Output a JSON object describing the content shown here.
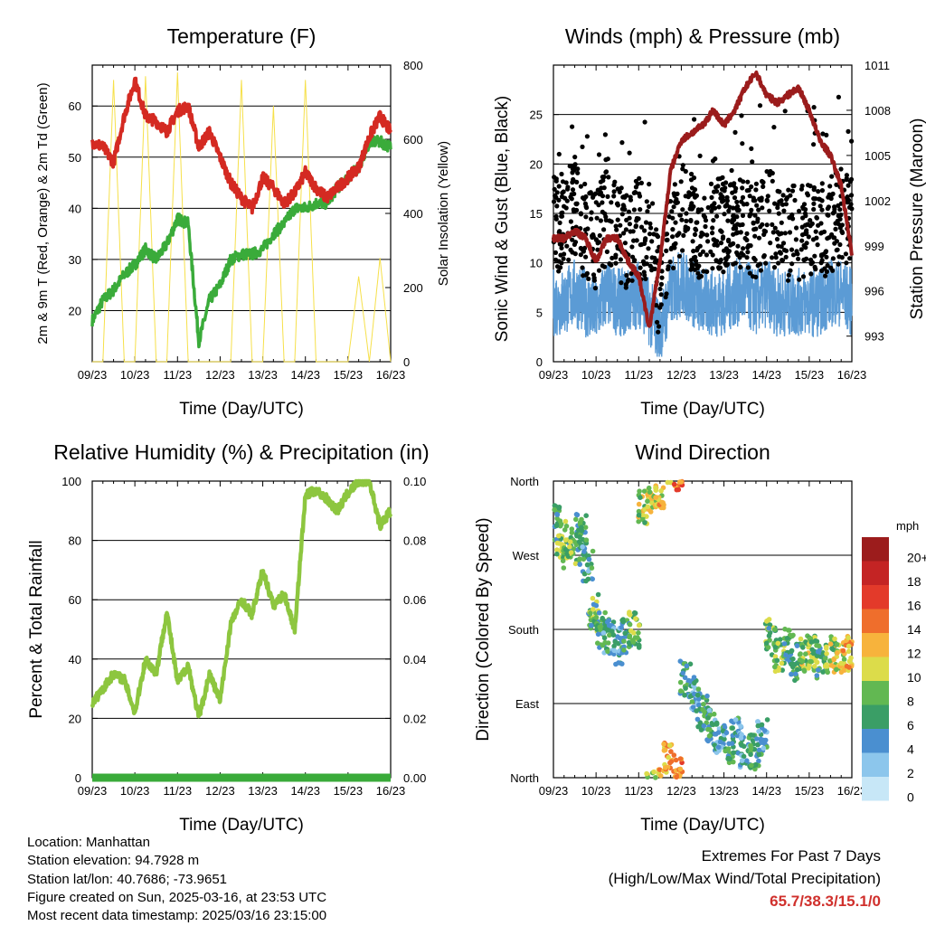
{
  "x_ticks": [
    "09/23",
    "10/23",
    "11/23",
    "12/23",
    "13/23",
    "14/23",
    "15/23",
    "16/23"
  ],
  "xlabel": "Time (Day/UTC)",
  "info": {
    "location": "Location: Manhattan",
    "elevation": "Station elevation: 94.7928 m",
    "latlon": "Station lat/lon: 40.7686; -73.9651",
    "created": "Figure created on Sun, 2025-03-16, at 23:53 UTC",
    "recent": "Most recent data timestamp: 2025/03/16 23:15:00"
  },
  "extremes": {
    "title": "Extremes For Past 7 Days",
    "subtitle": "(High/Low/Max Wind/Total Precipitation)",
    "values": "65.7/38.3/15.1/0",
    "color": "#d0302c"
  },
  "chart_data": [
    {
      "type": "line",
      "title": "Temperature (F)",
      "xlabel": "Time (Day/UTC)",
      "ylabel": "2m & 9m T (Red, Orange) & 2m Td (Green)",
      "y2label": "Solar Insolation (Yellow)",
      "ylim": [
        10,
        68
      ],
      "y2lim": [
        0,
        800
      ],
      "yticks": [
        20,
        30,
        40,
        50,
        60
      ],
      "y2ticks": [
        0,
        200,
        400,
        600,
        800
      ],
      "grid": true,
      "x": [
        9.0,
        9.25,
        9.5,
        9.75,
        10.0,
        10.25,
        10.5,
        10.75,
        11.0,
        11.25,
        11.5,
        11.75,
        12.0,
        12.25,
        12.5,
        12.75,
        13.0,
        13.25,
        13.5,
        13.75,
        14.0,
        14.25,
        14.5,
        14.75,
        15.0,
        15.25,
        15.5,
        15.75,
        16.0
      ],
      "series": [
        {
          "color": "#d42a22",
          "values": [
            53,
            52,
            49,
            58,
            65,
            58,
            57,
            55,
            59,
            60,
            52,
            55,
            50,
            45,
            42,
            40,
            46,
            44,
            41,
            43,
            47,
            44,
            42,
            44,
            46,
            48,
            54,
            58,
            55
          ]
        },
        {
          "color": "#3aab3a",
          "values": [
            18,
            22,
            24,
            27,
            29,
            32,
            30,
            33,
            38,
            37,
            14,
            22,
            25,
            30,
            31,
            31,
            32,
            35,
            37,
            40,
            40,
            41,
            41,
            44,
            46,
            48,
            53,
            53,
            52
          ]
        },
        {
          "color": "#f6e04a",
          "values": [
            0,
            0,
            760,
            0,
            0,
            770,
            0,
            0,
            780,
            0,
            0,
            0,
            0,
            0,
            760,
            0,
            0,
            690,
            0,
            0,
            760,
            0,
            0,
            0,
            0,
            230,
            0,
            280,
            0
          ]
        }
      ]
    },
    {
      "type": "scatter",
      "title": "Winds (mph) & Pressure (mb)",
      "xlabel": "Time (Day/UTC)",
      "ylabel": "Sonic Wind & Gust (Blue, Black)",
      "y2label": "Station Pressure (Maroon)",
      "ylim": [
        0,
        30
      ],
      "y2lim": [
        991.3,
        1011
      ],
      "yticks": [
        0,
        5,
        10,
        15,
        20,
        25
      ],
      "y2ticks": [
        993,
        996,
        999,
        1002,
        1005,
        1008,
        1011
      ],
      "grid": true,
      "x": [
        9.0,
        9.25,
        9.5,
        9.75,
        10.0,
        10.25,
        10.5,
        10.75,
        11.0,
        11.25,
        11.5,
        11.75,
        12.0,
        12.25,
        12.5,
        12.75,
        13.0,
        13.25,
        13.5,
        13.75,
        14.0,
        14.25,
        14.5,
        14.75,
        15.0,
        15.25,
        15.5,
        15.75,
        16.0
      ],
      "series": [
        {
          "name": "Sonic Wind",
          "color": "#5b9bd5",
          "values": [
            6,
            6,
            7,
            6,
            5,
            7,
            6,
            6,
            7,
            5,
            3,
            7,
            8,
            7,
            6,
            6,
            6,
            7,
            7,
            6,
            7,
            6,
            6,
            6,
            6,
            6,
            7,
            7,
            6
          ]
        },
        {
          "name": "Gust",
          "color": "#000000",
          "values": [
            14,
            14,
            16,
            13,
            12,
            15,
            13,
            12,
            14,
            11,
            7,
            13,
            16,
            14,
            13,
            14,
            14,
            15,
            14,
            13,
            15,
            14,
            13,
            13,
            13,
            13,
            14,
            15,
            14
          ]
        },
        {
          "name": "Pressure",
          "color": "#9b1c1c",
          "values": [
            999.5,
            999.5,
            1000,
            999.5,
            998,
            999.5,
            999.5,
            998,
            997,
            993.5,
            998,
            1004,
            1006,
            1006.5,
            1007,
            1008,
            1007,
            1008,
            1009.5,
            1010.5,
            1009,
            1008.5,
            1009,
            1009.5,
            1008,
            1006,
            1005,
            1003,
            998.5
          ]
        }
      ]
    },
    {
      "type": "line",
      "title": "Relative Humidity (%) & Precipitation (in)",
      "xlabel": "Time (Day/UTC)",
      "ylabel": "Percent & Total Rainfall",
      "ylim": [
        0,
        100
      ],
      "y2lim": [
        0,
        0.1
      ],
      "yticks": [
        0,
        20,
        40,
        60,
        80,
        100
      ],
      "y2ticks": [
        "0.00",
        "0.02",
        "0.04",
        "0.06",
        "0.08",
        "0.10"
      ],
      "grid": true,
      "x": [
        9.0,
        9.25,
        9.5,
        9.75,
        10.0,
        10.25,
        10.5,
        10.75,
        11.0,
        11.25,
        11.5,
        11.75,
        12.0,
        12.25,
        12.5,
        12.75,
        13.0,
        13.25,
        13.5,
        13.75,
        14.0,
        14.25,
        14.5,
        14.75,
        15.0,
        15.25,
        15.5,
        15.75,
        16.0
      ],
      "series": [
        {
          "name": "Relative Humidity",
          "color": "#8dc63f",
          "values": [
            25,
            30,
            35,
            33,
            22,
            40,
            35,
            56,
            32,
            38,
            20,
            35,
            26,
            52,
            60,
            55,
            70,
            58,
            62,
            50,
            95,
            97,
            94,
            90,
            96,
            100,
            100,
            85,
            90
          ]
        },
        {
          "name": "Total Rainfall",
          "color": "#3aab3a",
          "values": [
            0,
            0,
            0,
            0,
            0,
            0,
            0,
            0,
            0,
            0,
            0,
            0,
            0,
            0,
            0,
            0,
            0,
            0,
            0,
            0,
            0,
            0,
            0,
            0,
            0,
            0,
            0,
            0,
            0
          ]
        }
      ]
    },
    {
      "type": "scatter",
      "title": "Wind Direction",
      "xlabel": "Time (Day/UTC)",
      "ylabel": "Direction (Colored By Speed)",
      "ylim": [
        0,
        360
      ],
      "yticks": [
        "North",
        "East",
        "South",
        "West",
        "North"
      ],
      "grid": true,
      "colorbar": {
        "title": "mph",
        "labels": [
          "0",
          "2",
          "4",
          "6",
          "8",
          "10",
          "12",
          "14",
          "16",
          "18",
          "20+"
        ],
        "colors": [
          "#c7e7f7",
          "#8cc6ec",
          "#4a8fd0",
          "#3a9e66",
          "#62b852",
          "#dcdc4a",
          "#f7b33c",
          "#ef6e2c",
          "#e33a2a",
          "#c42424",
          "#9c1c1c"
        ]
      },
      "x": [
        9.05,
        9.2,
        9.35,
        9.5,
        9.65,
        9.8,
        9.95,
        10.1,
        10.3,
        10.5,
        10.7,
        10.9,
        11.1,
        11.3,
        11.5,
        11.7,
        11.9,
        12.1,
        12.3,
        12.5,
        12.7,
        12.9,
        13.1,
        13.3,
        13.5,
        13.7,
        13.9,
        14.1,
        14.3,
        14.5,
        14.7,
        14.9,
        15.1,
        15.3,
        15.5,
        15.7,
        15.9
      ],
      "values": [
        310,
        290,
        270,
        280,
        300,
        260,
        200,
        180,
        170,
        160,
        170,
        180,
        330,
        345,
        350,
        20,
        10,
        120,
        100,
        80,
        60,
        50,
        40,
        50,
        30,
        30,
        50,
        170,
        150,
        160,
        140,
        150,
        150,
        140,
        150,
        145,
        150
      ],
      "speeds": [
        6,
        8,
        9,
        7,
        6,
        5,
        7,
        6,
        5,
        4,
        6,
        8,
        9,
        10,
        11,
        12,
        14,
        6,
        5,
        6,
        5,
        4,
        6,
        5,
        4,
        6,
        5,
        7,
        8,
        6,
        7,
        9,
        8,
        6,
        9,
        10,
        12
      ]
    }
  ]
}
